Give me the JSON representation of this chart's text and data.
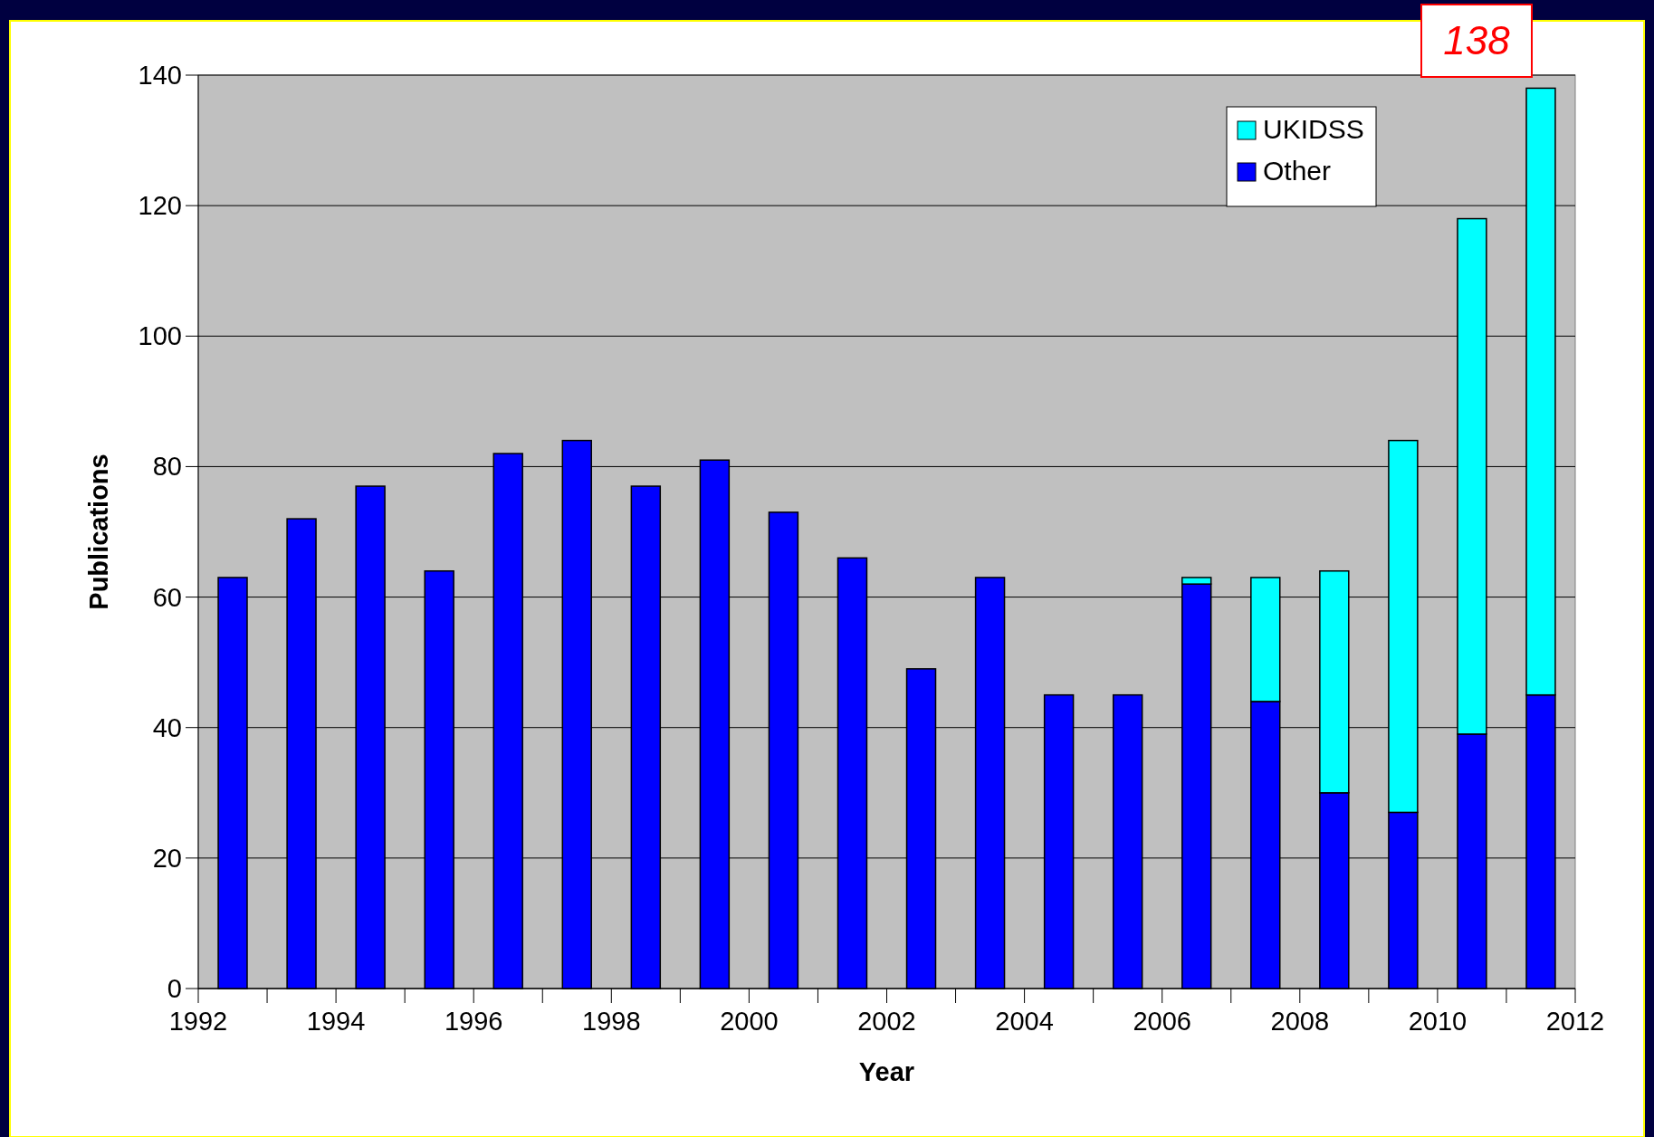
{
  "chart_data": {
    "type": "bar",
    "stacked": true,
    "xlabel": "Year",
    "ylabel": "Publications",
    "x": [
      1992.5,
      1993.5,
      1994.5,
      1995.5,
      1996.5,
      1997.5,
      1998.5,
      1999.5,
      2000.5,
      2001.5,
      2002.5,
      2003.5,
      2004.5,
      2005.5,
      2006.5,
      2007.5,
      2008.5,
      2009.5,
      2010.5,
      2011.5
    ],
    "series": [
      {
        "name": "Other",
        "color": "#0000ff",
        "values": [
          63,
          72,
          77,
          64,
          82,
          84,
          77,
          81,
          73,
          66,
          49,
          63,
          45,
          45,
          62,
          44,
          30,
          27,
          39,
          45
        ]
      },
      {
        "name": "UKIDSS",
        "color": "#00ffff",
        "values": [
          0,
          0,
          0,
          0,
          0,
          0,
          0,
          0,
          0,
          0,
          0,
          0,
          0,
          0,
          1,
          19,
          34,
          57,
          79,
          93
        ]
      }
    ],
    "xlim": [
      1992,
      2012
    ],
    "xticks": [
      1992,
      {
        "value": 1993,
        "label": null
      },
      1994,
      {
        "value": 1995,
        "label": null
      },
      1996,
      {
        "value": 1997,
        "label": null
      },
      1998,
      {
        "value": 1999,
        "label": null
      },
      2000,
      {
        "value": 2001,
        "label": null
      },
      2002,
      {
        "value": 2003,
        "label": null
      },
      2004,
      {
        "value": 2005,
        "label": null
      },
      2006,
      {
        "value": 2007,
        "label": null
      },
      2008,
      {
        "value": 2009,
        "label": null
      },
      2010,
      {
        "value": 2011,
        "label": null
      },
      2012
    ],
    "ylim": [
      0,
      140
    ],
    "yticks": [
      0,
      20,
      40,
      60,
      80,
      100,
      120,
      140
    ],
    "grid": "y",
    "legend": "top right",
    "annotations": [
      "138"
    ]
  }
}
